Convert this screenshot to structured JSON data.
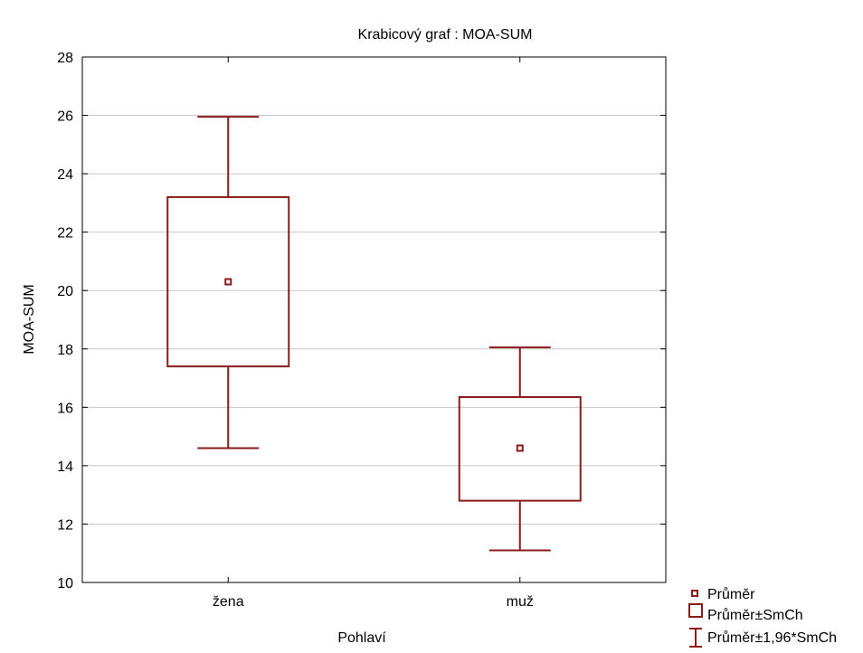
{
  "chart_data": {
    "type": "box",
    "title": "Krabicový graf :  MOA-SUM",
    "xlabel": "Pohlaví",
    "ylabel": "MOA-SUM",
    "ylim": [
      10,
      28
    ],
    "yticks": [
      "10",
      "12",
      "14",
      "16",
      "18",
      "20",
      "22",
      "24",
      "26",
      "28"
    ],
    "ytick_values": [
      10,
      12,
      14,
      16,
      18,
      20,
      22,
      24,
      26,
      28
    ],
    "grid": true,
    "legend_position": "bottom-right",
    "categories": [
      "žena",
      "muž"
    ],
    "series": [
      {
        "category": "žena",
        "mean": 20.3,
        "box_low": 17.4,
        "box_high": 23.2,
        "whisker_low": 14.6,
        "whisker_high": 25.95
      },
      {
        "category": "muž",
        "mean": 14.6,
        "box_low": 12.8,
        "box_high": 16.35,
        "whisker_low": 11.1,
        "whisker_high": 18.05
      }
    ],
    "legend": [
      "Průměr",
      "Průměr±SmCh",
      "Průměr±1,96*SmCh"
    ],
    "color": "#8b1a1a"
  }
}
